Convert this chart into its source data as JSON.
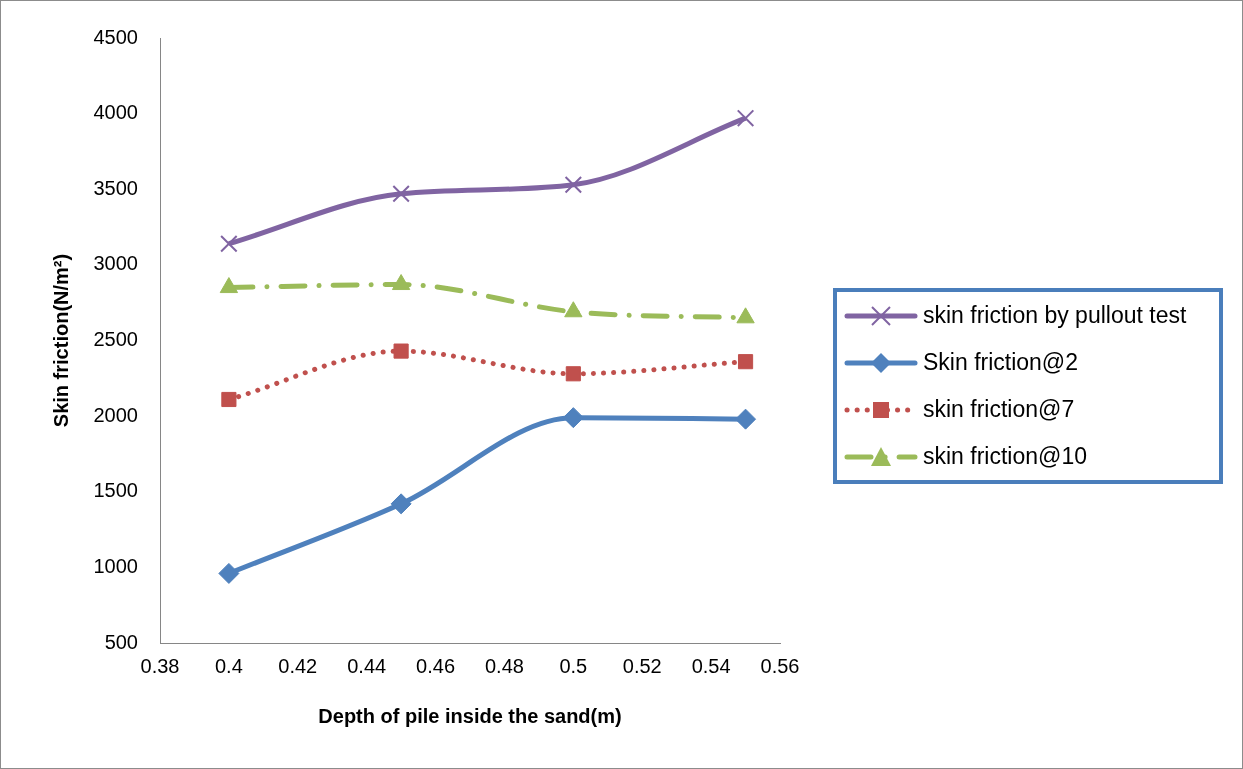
{
  "chart_data": {
    "type": "line",
    "xlabel": "Depth of pile inside the sand(m)",
    "ylabel": "Skin friction(N/m²)",
    "x": [
      0.4,
      0.45,
      0.5,
      0.55
    ],
    "xlim": [
      0.38,
      0.56
    ],
    "xticks": [
      0.38,
      0.4,
      0.42,
      0.44,
      0.46,
      0.48,
      0.5,
      0.52,
      0.54,
      0.56
    ],
    "ylim": [
      500,
      4500
    ],
    "yticks": [
      500,
      1000,
      1500,
      2000,
      2500,
      3000,
      3500,
      4000,
      4500
    ],
    "grid": false,
    "legend": "right",
    "series": [
      {
        "name": "skin friction by pullout test",
        "color": "#8064a2",
        "values": [
          3140,
          3470,
          3530,
          3970
        ],
        "marker": "cross",
        "line_style": "solid"
      },
      {
        "name": "Skin friction@2",
        "color": "#4f81bd",
        "values": [
          960,
          1420,
          1990,
          1980
        ],
        "marker": "diamond",
        "line_style": "solid"
      },
      {
        "name": "skin friction@7",
        "color": "#c0504d",
        "values": [
          2110,
          2430,
          2280,
          2360
        ],
        "marker": "square",
        "line_style": "dotted"
      },
      {
        "name": "skin friction@10",
        "color": "#9bbb59",
        "values": [
          2850,
          2870,
          2690,
          2650
        ],
        "marker": "triangle",
        "line_style": "dashed"
      }
    ]
  }
}
